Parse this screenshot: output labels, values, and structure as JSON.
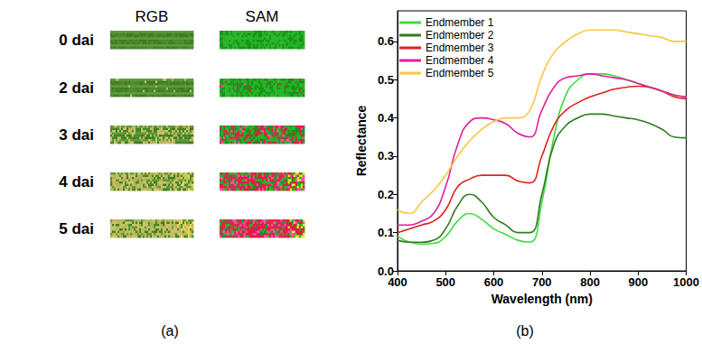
{
  "panel_a": {
    "columns": [
      "RGB",
      "SAM"
    ],
    "rows": [
      "0 dai",
      "2 dai",
      "3 dai",
      "4 dai",
      "5 dai"
    ],
    "caption": "(a)"
  },
  "chart_data": {
    "type": "line",
    "title": "(b)",
    "x_label": "Wavelength (nm)",
    "y_label": "Reflectance",
    "x": [
      400,
      425,
      450,
      475,
      500,
      525,
      550,
      575,
      600,
      625,
      650,
      675,
      700,
      725,
      750,
      775,
      800,
      825,
      850,
      875,
      900,
      925,
      950,
      975,
      1000
    ],
    "series": [
      {
        "name": "Endmember 1",
        "color": "#3ddc3d",
        "values": [
          0.09,
          0.075,
          0.07,
          0.072,
          0.09,
          0.13,
          0.15,
          0.135,
          0.11,
          0.095,
          0.08,
          0.075,
          0.18,
          0.35,
          0.46,
          0.5,
          0.515,
          0.515,
          0.51,
          0.5,
          0.49,
          0.48,
          0.47,
          0.46,
          0.455
        ]
      },
      {
        "name": "Endmember 2",
        "color": "#2e7d1e",
        "values": [
          0.08,
          0.075,
          0.075,
          0.08,
          0.11,
          0.17,
          0.2,
          0.18,
          0.14,
          0.12,
          0.1,
          0.1,
          0.2,
          0.33,
          0.38,
          0.4,
          0.41,
          0.41,
          0.405,
          0.4,
          0.395,
          0.385,
          0.37,
          0.35,
          0.348
        ]
      },
      {
        "name": "Endmember 3",
        "color": "#e02020",
        "values": [
          0.1,
          0.11,
          0.12,
          0.13,
          0.16,
          0.22,
          0.24,
          0.25,
          0.25,
          0.25,
          0.235,
          0.23,
          0.3,
          0.38,
          0.42,
          0.44,
          0.455,
          0.465,
          0.475,
          0.48,
          0.483,
          0.48,
          0.47,
          0.455,
          0.45
        ]
      },
      {
        "name": "Endmember 4",
        "color": "#e0209a",
        "values": [
          0.12,
          0.12,
          0.13,
          0.15,
          0.22,
          0.33,
          0.39,
          0.4,
          0.395,
          0.385,
          0.36,
          0.35,
          0.42,
          0.48,
          0.505,
          0.51,
          0.515,
          0.51,
          0.505,
          0.5,
          0.49,
          0.48,
          0.47,
          0.46,
          0.455
        ]
      },
      {
        "name": "Endmember 5",
        "color": "#f5c842",
        "values": [
          0.16,
          0.15,
          0.18,
          0.21,
          0.25,
          0.3,
          0.34,
          0.37,
          0.39,
          0.4,
          0.4,
          0.42,
          0.51,
          0.57,
          0.6,
          0.62,
          0.63,
          0.63,
          0.63,
          0.625,
          0.62,
          0.615,
          0.61,
          0.6,
          0.6
        ]
      }
    ],
    "xlim": [
      400,
      1000
    ],
    "xticks": [
      400,
      500,
      600,
      700,
      800,
      900,
      1000
    ],
    "ylim": [
      0,
      0.68
    ],
    "yticks": [
      {
        "value": 0,
        "label": "0.0"
      },
      0.1,
      0.2,
      0.3,
      0.4,
      0.5,
      0.6
    ],
    "grid": false,
    "legend": "upper left"
  }
}
